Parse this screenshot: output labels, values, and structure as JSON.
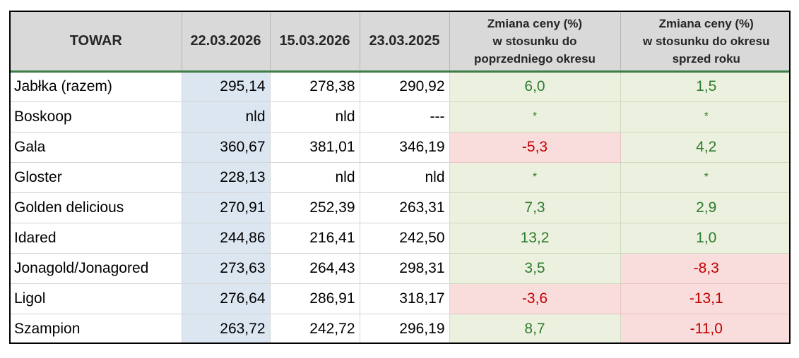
{
  "table": {
    "headers": {
      "product": "TOWAR",
      "date1": "22.03.2026",
      "date2": "15.03.2026",
      "date3": "23.03.2025",
      "change_prev": [
        "Zmiana ceny (%)",
        "w stosunku do",
        "poprzedniego okresu"
      ],
      "change_year": [
        "Zmiana ceny (%)",
        "w stosunku do okresu",
        "sprzed roku"
      ]
    },
    "rows": [
      {
        "name": "Jabłka (razem)",
        "d1": "295,14",
        "d2": "278,38",
        "d3": "290,92",
        "chg_prev": "6,0",
        "chg_year": "1,5",
        "prev_status": "positive",
        "year_status": "positive"
      },
      {
        "name": "Boskoop",
        "d1": "nld",
        "d2": "nld",
        "d3": "---",
        "chg_prev": "*",
        "chg_year": "*",
        "prev_status": "positive",
        "year_status": "positive"
      },
      {
        "name": "Gala",
        "d1": "360,67",
        "d2": "381,01",
        "d3": "346,19",
        "chg_prev": "-5,3",
        "chg_year": "4,2",
        "prev_status": "negative",
        "year_status": "positive"
      },
      {
        "name": "Gloster",
        "d1": "228,13",
        "d2": "nld",
        "d3": "nld",
        "chg_prev": "*",
        "chg_year": "*",
        "prev_status": "positive",
        "year_status": "positive"
      },
      {
        "name": "Golden delicious",
        "d1": "270,91",
        "d2": "252,39",
        "d3": "263,31",
        "chg_prev": "7,3",
        "chg_year": "2,9",
        "prev_status": "positive",
        "year_status": "positive"
      },
      {
        "name": "Idared",
        "d1": "244,86",
        "d2": "216,41",
        "d3": "242,50",
        "chg_prev": "13,2",
        "chg_year": "1,0",
        "prev_status": "positive",
        "year_status": "positive"
      },
      {
        "name": "Jonagold/Jonagored",
        "d1": "273,63",
        "d2": "264,43",
        "d3": "298,31",
        "chg_prev": "3,5",
        "chg_year": "-8,3",
        "prev_status": "positive",
        "year_status": "negative"
      },
      {
        "name": "Ligol",
        "d1": "276,64",
        "d2": "286,91",
        "d3": "318,17",
        "chg_prev": "-3,6",
        "chg_year": "-13,1",
        "prev_status": "negative",
        "year_status": "negative"
      },
      {
        "name": "Szampion",
        "d1": "263,72",
        "d2": "242,72",
        "d3": "296,19",
        "chg_prev": "8,7",
        "chg_year": "-11,0",
        "prev_status": "positive",
        "year_status": "negative"
      }
    ]
  },
  "colors": {
    "header_bg": "#d9d9d9",
    "header_rule": "#3e7d45",
    "current_week_bg": "#dce6f1",
    "positive_bg": "#ebf1de",
    "positive_text": "#2f7a2f",
    "negative_bg": "#f9dcdc",
    "negative_text": "#c00000"
  }
}
